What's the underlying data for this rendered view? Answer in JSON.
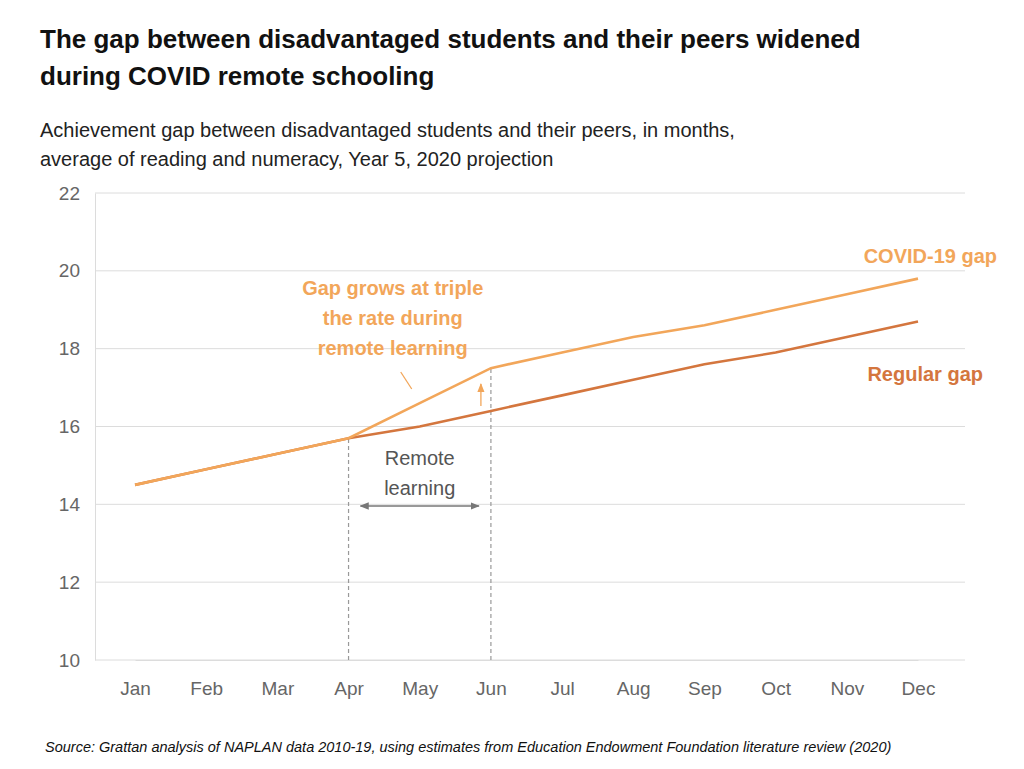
{
  "chart_data": {
    "type": "line",
    "title": [
      "The gap between disadvantaged students and their peers widened",
      "during COVID remote schooling"
    ],
    "subtitle": [
      "Achievement gap between disadvantaged students and their peers, in months,",
      "average of reading and numeracy, Year 5, 2020 projection"
    ],
    "categories": [
      "Jan",
      "Feb",
      "Mar",
      "Apr",
      "May",
      "Jun",
      "Jul",
      "Aug",
      "Sep",
      "Oct",
      "Nov",
      "Dec"
    ],
    "series": [
      {
        "name": "COVID-19 gap",
        "color": "#f2a65a",
        "values": [
          14.5,
          14.9,
          15.3,
          15.7,
          16.6,
          17.5,
          17.9,
          18.3,
          18.6,
          19.0,
          19.4,
          19.8
        ]
      },
      {
        "name": "Regular gap",
        "color": "#d4763e",
        "values": [
          14.5,
          14.9,
          15.3,
          15.7,
          16.0,
          16.4,
          16.8,
          17.2,
          17.6,
          17.9,
          18.3,
          18.7
        ]
      }
    ],
    "ylim": [
      10,
      22
    ],
    "yticks": [
      10,
      12,
      14,
      16,
      18,
      20,
      22
    ],
    "grid": true,
    "annotations": [
      {
        "text": [
          "Gap grows at triple",
          "the rate during",
          "remote learning"
        ]
      }
    ],
    "remote_learning": {
      "label": [
        "Remote",
        "learning"
      ],
      "from": "Apr",
      "to": "Jun"
    },
    "source": "Source: Grattan analysis of NAPLAN data 2010-19, using estimates from Education Endowment Foundation literature review (2020)"
  }
}
